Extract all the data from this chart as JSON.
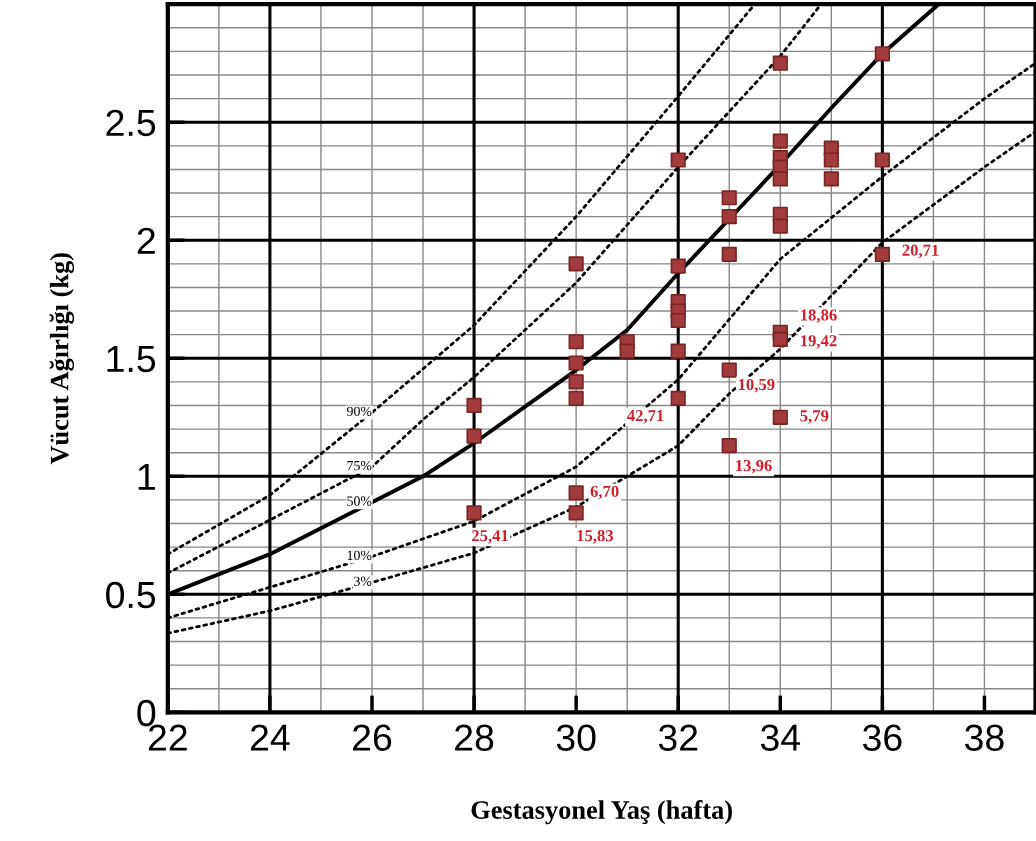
{
  "chart_data": {
    "type": "line",
    "xlabel": "Gestasyonel Yaş (hafta)",
    "ylabel": "Vücut Ağırlığı (kg)",
    "xlim": [
      22,
      39
    ],
    "ylim": [
      0,
      3.0
    ],
    "xticks": [
      22,
      24,
      26,
      28,
      30,
      32,
      34,
      36,
      38
    ],
    "yticks": [
      0,
      0.5,
      1,
      1.5,
      2,
      2.5
    ],
    "grid": true,
    "legend": false,
    "series": [
      {
        "name": "90%",
        "line_style": "dotted",
        "marker": "none",
        "color": "#000000",
        "x": [
          22,
          24,
          26,
          28,
          30,
          32,
          33.5
        ],
        "values": [
          0.67,
          0.92,
          1.27,
          1.64,
          2.1,
          2.61,
          3.0
        ]
      },
      {
        "name": "75%",
        "line_style": "dotted",
        "marker": "none",
        "color": "#000000",
        "x": [
          22,
          24,
          26,
          27,
          28,
          30,
          32,
          34,
          34.8
        ],
        "values": [
          0.59,
          0.815,
          1.04,
          1.24,
          1.42,
          1.82,
          2.31,
          2.78,
          3.0
        ]
      },
      {
        "name": "50%",
        "line_style": "solid",
        "marker": "none",
        "color": "#000000",
        "x": [
          22,
          24,
          26,
          27,
          28,
          30,
          31,
          32,
          33,
          34,
          35,
          36,
          37.1
        ],
        "values": [
          0.5,
          0.67,
          0.89,
          1.0,
          1.14,
          1.45,
          1.62,
          1.86,
          2.09,
          2.32,
          2.56,
          2.79,
          3.0
        ]
      },
      {
        "name": "10%",
        "line_style": "dotted",
        "marker": "none",
        "color": "#000000",
        "x": [
          22,
          24,
          26,
          28,
          30,
          32,
          34,
          36,
          38,
          39
        ],
        "values": [
          0.4,
          0.53,
          0.66,
          0.81,
          1.04,
          1.41,
          1.92,
          2.27,
          2.6,
          2.75
        ]
      },
      {
        "name": "3%",
        "line_style": "dotted",
        "marker": "none",
        "color": "#000000",
        "x": [
          22,
          24,
          26,
          28,
          30,
          32,
          33,
          34,
          36,
          38,
          39
        ],
        "values": [
          0.335,
          0.43,
          0.55,
          0.675,
          0.87,
          1.13,
          1.35,
          1.54,
          1.99,
          2.31,
          2.46
        ]
      },
      {
        "type": "scatter",
        "marker": "square",
        "color": "#a23b3b",
        "x": [
          28,
          28,
          28,
          30,
          30,
          30,
          30,
          30,
          30,
          30,
          31,
          31,
          32,
          32,
          32,
          32,
          32,
          32,
          32,
          33,
          33,
          33,
          33,
          33,
          34,
          34,
          34,
          34,
          34,
          34,
          34,
          34,
          34,
          34,
          35,
          35,
          35,
          36,
          36,
          36
        ],
        "values": [
          1.3,
          1.17,
          0.845,
          1.9,
          1.57,
          1.48,
          1.4,
          1.33,
          0.93,
          0.845,
          1.57,
          1.53,
          2.34,
          1.89,
          1.74,
          1.7,
          1.66,
          1.53,
          1.33,
          2.18,
          2.1,
          1.94,
          1.45,
          1.13,
          2.75,
          2.42,
          2.35,
          2.31,
          2.26,
          2.11,
          2.06,
          1.61,
          1.58,
          1.25,
          2.39,
          2.34,
          2.26,
          2.79,
          2.34,
          1.94
        ]
      }
    ],
    "annotations": [
      {
        "text": "25,41",
        "x": 28,
        "y": 0.845
      },
      {
        "text": "15,83",
        "x": 30,
        "y": 0.845
      },
      {
        "text": "6,70",
        "x": 30,
        "y": 0.93
      },
      {
        "text": "42,71",
        "x": 32,
        "y": 1.33
      },
      {
        "text": "10,59",
        "x": 33,
        "y": 1.45
      },
      {
        "text": "13,96",
        "x": 33,
        "y": 1.13
      },
      {
        "text": "5,79",
        "x": 34,
        "y": 1.25
      },
      {
        "text": "18,86",
        "x": 34,
        "y": 1.61
      },
      {
        "text": "19,42",
        "x": 34,
        "y": 1.58
      },
      {
        "text": "20,71",
        "x": 36,
        "y": 1.94
      }
    ]
  }
}
